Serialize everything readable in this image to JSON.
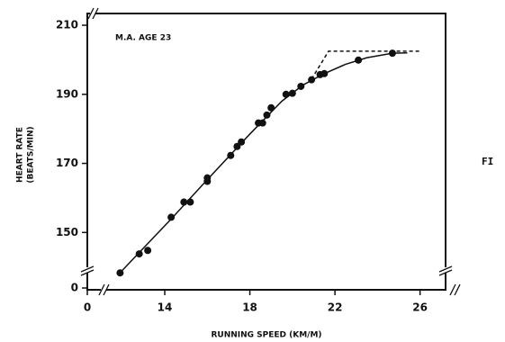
{
  "chart_data": {
    "type": "scatter",
    "annotation": "M.A. AGE 23",
    "ylabel": [
      "HEART RATE",
      "(BEATS/MIN)"
    ],
    "xlabel": "RUNNING SPEED (KM/M)",
    "side_text": "FI",
    "xlim": [
      10.36,
      27.2
    ],
    "ylim": [
      133.4,
      213.4
    ],
    "xticks": [
      0,
      14,
      18,
      22,
      26
    ],
    "yticks": [
      0,
      150,
      170,
      190,
      210
    ],
    "axis_break": true,
    "color": "#111",
    "x": [
      11.9,
      12.8,
      13.2,
      14.3,
      14.9,
      15.2,
      16.0,
      16.0,
      17.1,
      17.4,
      17.6,
      18.4,
      18.6,
      18.8,
      19.0,
      19.7,
      20.0,
      20.4,
      20.9,
      21.3,
      21.5,
      23.1,
      24.7
    ],
    "values": [
      138.3,
      143.8,
      144.8,
      154.4,
      158.8,
      158.8,
      164.8,
      165.8,
      172.3,
      174.9,
      176.2,
      181.7,
      181.7,
      184.0,
      186.1,
      190.0,
      190.3,
      192.3,
      194.2,
      195.7,
      196.0,
      199.9,
      201.9
    ],
    "series": [
      {
        "style": "solid",
        "x": [
          11.8,
          14.3,
          16.0,
          18.0,
          19.5,
          20.5,
          21.5,
          22.5,
          23.5,
          24.7,
          25.4
        ],
        "values": [
          137.7,
          153.9,
          165.3,
          178.5,
          188.0,
          192.7,
          196.0,
          198.7,
          200.6,
          201.9,
          202.0
        ]
      },
      {
        "style": "dashed",
        "x": [
          20.9,
          21.7,
          26.0
        ],
        "values": [
          194.4,
          202.5,
          202.5
        ]
      }
    ]
  }
}
